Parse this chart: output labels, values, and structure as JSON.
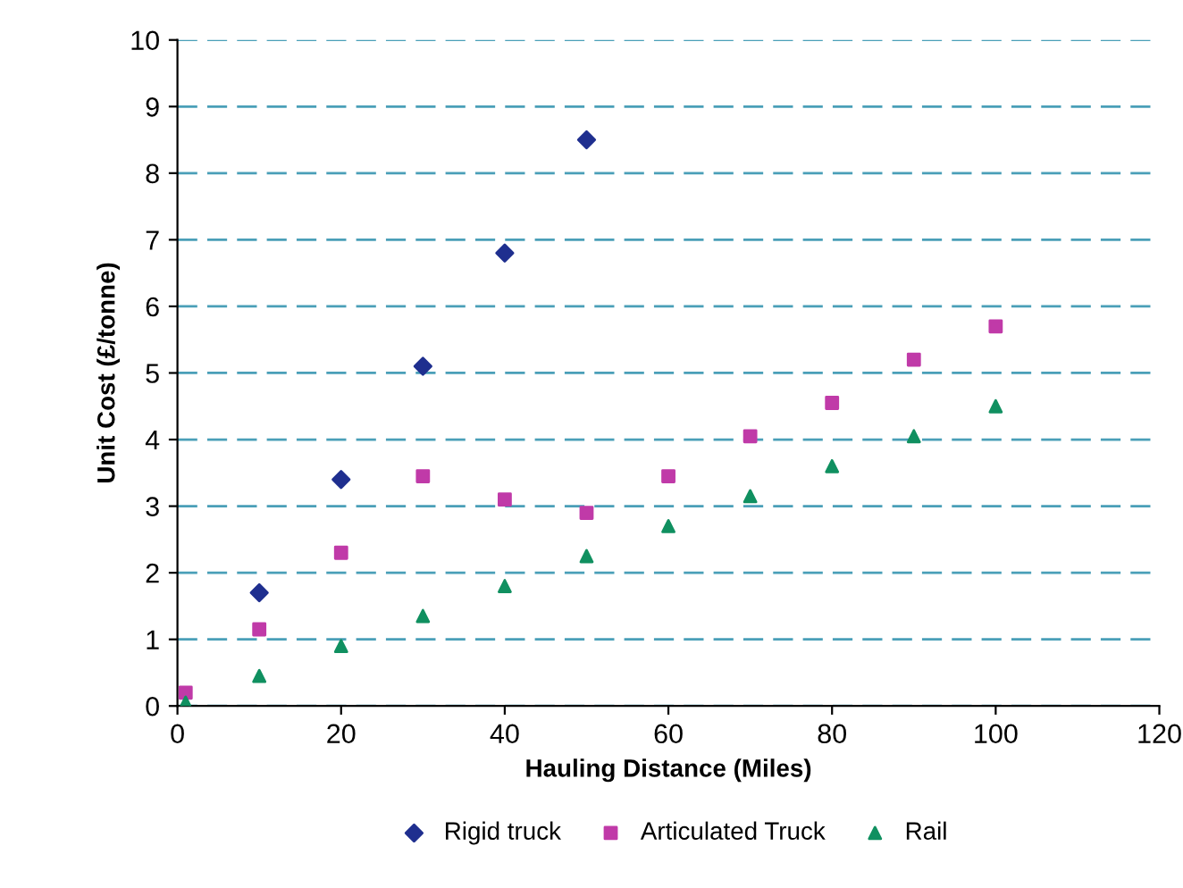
{
  "chart_data": {
    "type": "scatter",
    "xlabel": "Hauling Distance (Miles)",
    "ylabel": "Unit Cost (£/tonne)",
    "xlim": [
      0,
      120
    ],
    "xticks": [
      0,
      20,
      40,
      60,
      80,
      100,
      120
    ],
    "ylim": [
      0,
      10
    ],
    "yticks": [
      0,
      1,
      2,
      3,
      4,
      5,
      6,
      7,
      8,
      9,
      10
    ],
    "grid": "y",
    "legend": "bottom",
    "series": [
      {
        "name": "Rigid truck",
        "color": "#1f2f8f",
        "marker": "diamond",
        "x": [
          10,
          20,
          30,
          40,
          50
        ],
        "values": [
          1.7,
          3.4,
          5.1,
          6.8,
          8.5
        ]
      },
      {
        "name": "Articulated Truck",
        "color": "#c03aa8",
        "marker": "square",
        "x": [
          1,
          10,
          20,
          30,
          40,
          50,
          60,
          70,
          80,
          90,
          100
        ],
        "values": [
          0.2,
          1.15,
          2.3,
          3.45,
          3.1,
          2.9,
          3.45,
          4.05,
          4.55,
          5.2,
          5.7
        ]
      },
      {
        "name": "Rail",
        "color": "#109060",
        "marker": "triangle",
        "x": [
          1,
          10,
          20,
          30,
          40,
          50,
          60,
          70,
          80,
          90,
          100
        ],
        "values": [
          0.05,
          0.45,
          0.9,
          1.35,
          1.8,
          2.25,
          2.7,
          3.15,
          3.6,
          4.05,
          4.5
        ]
      }
    ]
  }
}
